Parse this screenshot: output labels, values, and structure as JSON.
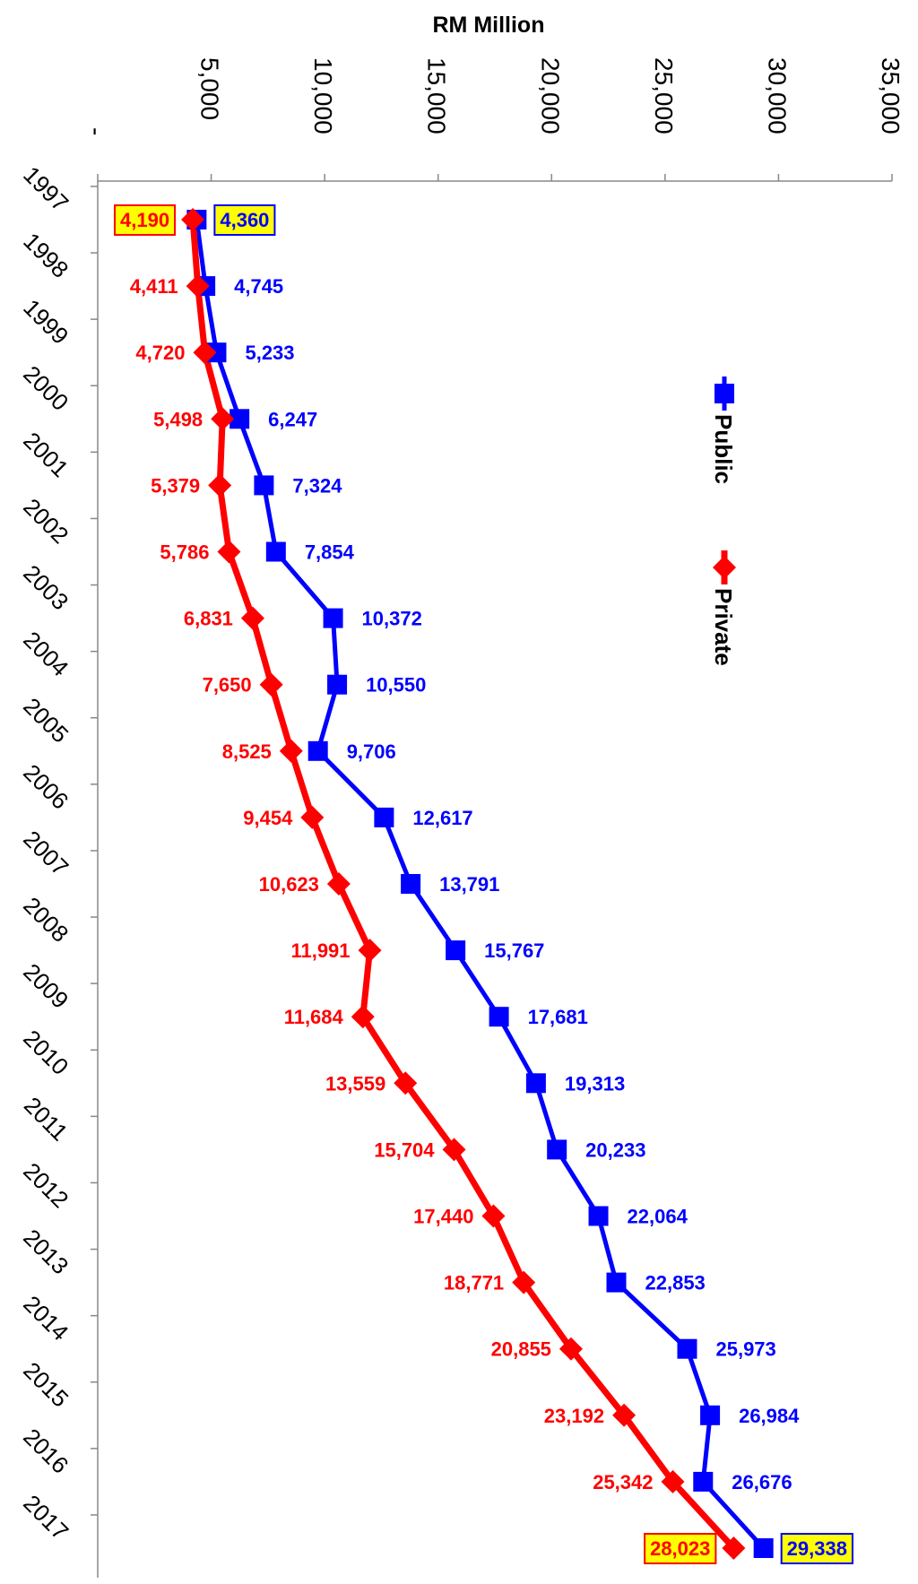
{
  "chart_data": {
    "type": "line",
    "orientation": "rotated-90",
    "title": "RM Million",
    "x": [
      "1997",
      "1998",
      "1999",
      "2000",
      "2001",
      "2002",
      "2003",
      "2004",
      "2005",
      "2006",
      "2007",
      "2008",
      "2009",
      "2010",
      "2011",
      "2012",
      "2013",
      "2014",
      "2015",
      "2016",
      "2017"
    ],
    "value_ticks": [
      "-",
      "5,000",
      "10,000",
      "15,000",
      "20,000",
      "25,000",
      "30,000",
      "35,000"
    ],
    "ylim": [
      0,
      35000
    ],
    "grid": false,
    "legend_position": "right",
    "series": [
      {
        "name": "Public",
        "color": "#0000ff",
        "marker": "square",
        "values": [
          4360,
          4745,
          5233,
          6247,
          7324,
          7854,
          10372,
          10550,
          9706,
          12617,
          13791,
          15767,
          17681,
          19313,
          20233,
          22064,
          22853,
          25973,
          26984,
          26676,
          29338
        ],
        "labels": [
          "4,360",
          "4,745",
          "5,233",
          "6,247",
          "7,324",
          "7,854",
          "10,372",
          "10,550",
          "9,706",
          "12,617",
          "13,791",
          "15,767",
          "17,681",
          "19,313",
          "20,233",
          "22,064",
          "22,853",
          "25,973",
          "26,984",
          "26,676",
          "29,338"
        ]
      },
      {
        "name": "Private",
        "color": "#ff0000",
        "marker": "diamond",
        "values": [
          4190,
          4411,
          4720,
          5498,
          5379,
          5786,
          6831,
          7650,
          8525,
          9454,
          10623,
          11991,
          11684,
          13559,
          15704,
          17440,
          18771,
          20855,
          23192,
          25342,
          28023
        ],
        "labels": [
          "4,190",
          "4,411",
          "4,720",
          "5,498",
          "5,379",
          "5,786",
          "6,831",
          "7,650",
          "8,525",
          "9,454",
          "10,623",
          "11,991",
          "11,684",
          "13,559",
          "15,704",
          "17,440",
          "18,771",
          "20,855",
          "23,192",
          "25,342",
          "28,023"
        ]
      }
    ],
    "highlight_box_fill": "#ffff00"
  }
}
